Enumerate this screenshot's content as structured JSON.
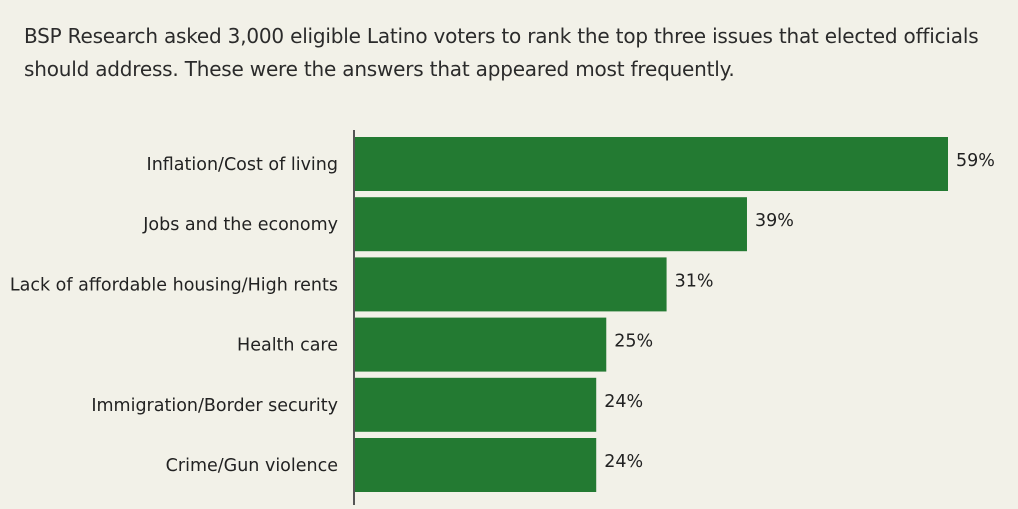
{
  "subtitle": "BSP Research asked 3,000 eligible Latino voters to rank the top three issues that elected officials should address. These were the answers that appeared most frequently.",
  "colors": {
    "bar": "#237a32",
    "axis": "#555555",
    "background": "#f2f1e8"
  },
  "chart_data": {
    "type": "bar",
    "orientation": "horizontal",
    "title": "",
    "xlabel": "",
    "ylabel": "",
    "categories": [
      "Inflation/Cost of living",
      "Jobs and the economy",
      "Lack of affordable housing/High rents",
      "Health care",
      "Immigration/Border security",
      "Crime/Gun violence"
    ],
    "values": [
      59,
      39,
      31,
      25,
      24,
      24
    ],
    "value_labels": [
      "59%",
      "39%",
      "31%",
      "25%",
      "24%",
      "24%"
    ],
    "xlim": [
      0,
      59
    ],
    "grid": false,
    "legend": "none"
  }
}
